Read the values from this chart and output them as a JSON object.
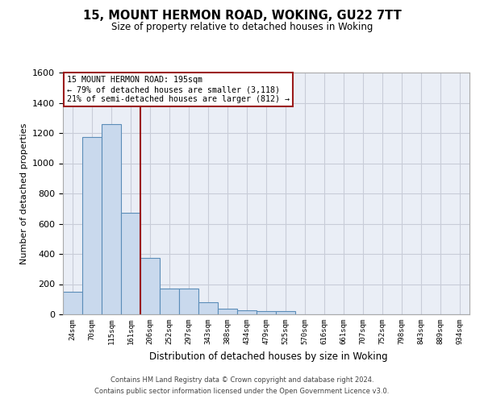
{
  "title_line1": "15, MOUNT HERMON ROAD, WOKING, GU22 7TT",
  "title_line2": "Size of property relative to detached houses in Woking",
  "xlabel": "Distribution of detached houses by size in Woking",
  "ylabel": "Number of detached properties",
  "categories": [
    "24sqm",
    "70sqm",
    "115sqm",
    "161sqm",
    "206sqm",
    "252sqm",
    "297sqm",
    "343sqm",
    "388sqm",
    "434sqm",
    "479sqm",
    "525sqm",
    "570sqm",
    "616sqm",
    "661sqm",
    "707sqm",
    "752sqm",
    "798sqm",
    "843sqm",
    "889sqm",
    "934sqm"
  ],
  "values": [
    150,
    1175,
    1260,
    670,
    375,
    170,
    170,
    80,
    35,
    25,
    20,
    20,
    0,
    0,
    0,
    0,
    0,
    0,
    0,
    0,
    0
  ],
  "bar_color": "#c9d9ed",
  "bar_edge_color": "#5b8db8",
  "vline_pos": 3.5,
  "vline_color": "#9b1b1b",
  "annotation_text": "15 MOUNT HERMON ROAD: 195sqm\n← 79% of detached houses are smaller (3,118)\n21% of semi-detached houses are larger (812) →",
  "annotation_box_edgecolor": "#9b1b1b",
  "ylim": [
    0,
    1600
  ],
  "yticks": [
    0,
    200,
    400,
    600,
    800,
    1000,
    1200,
    1400,
    1600
  ],
  "grid_color": "#c8ccd8",
  "axes_bg_color": "#eaeef6",
  "footer_line1": "Contains HM Land Registry data © Crown copyright and database right 2024.",
  "footer_line2": "Contains public sector information licensed under the Open Government Licence v3.0."
}
